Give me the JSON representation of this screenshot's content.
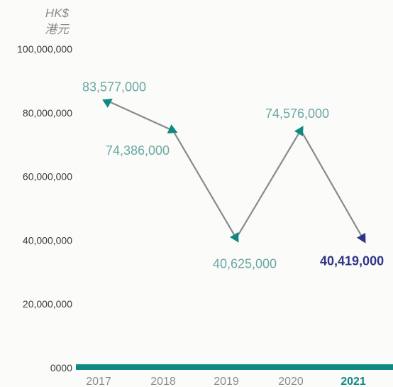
{
  "chart_data": {
    "type": "line",
    "unit_label": [
      "HK$",
      "港元"
    ],
    "categories": [
      "2017",
      "2018",
      "2019",
      "2020",
      "2021"
    ],
    "values": [
      83577000,
      74386000,
      40625000,
      74576000,
      40419000
    ],
    "data_labels": [
      "83,577,000",
      "74,386,000",
      "40,625,000",
      "74,576,000",
      "40,419,000"
    ],
    "highlight_category": "2021",
    "y_ticks": [
      {
        "value": 0,
        "label": "0000"
      },
      {
        "value": 20000000,
        "label": "20,000,000"
      },
      {
        "value": 40000000,
        "label": "40,000,000"
      },
      {
        "value": 60000000,
        "label": "60,000,000"
      },
      {
        "value": 80000000,
        "label": "80,000,000"
      },
      {
        "value": 100000000,
        "label": "100,000,000"
      }
    ],
    "ylim": [
      0,
      100000000
    ],
    "grid": false,
    "colors": {
      "line": "#8a8a8a",
      "marker": "#0f8a82",
      "marker_highlight": "#2e3589",
      "baseline": "#0f8a82",
      "label": "#6aa8a2",
      "label_highlight": "#2e3589",
      "axis_text": "#3a3a3a",
      "muted_text": "#8c8c8c"
    }
  }
}
